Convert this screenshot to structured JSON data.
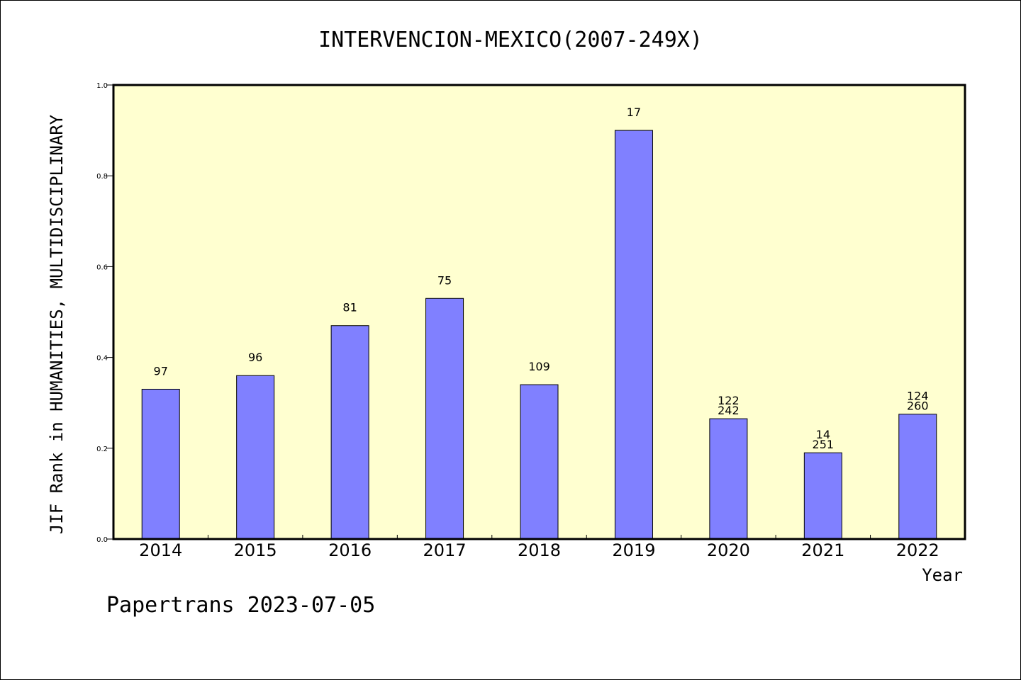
{
  "chart_data": {
    "type": "bar",
    "title": "INTERVENCION-MEXICO(2007-249X)",
    "xlabel": "Year",
    "ylabel": "JIF Rank in HUMANITIES, MULTIDISCIPLINARY",
    "ylim": [
      0,
      1.0
    ],
    "yticks": [
      "0.0",
      "0.2",
      "0.4",
      "0.6",
      "0.8",
      "1.0"
    ],
    "categories": [
      "2014",
      "2015",
      "2016",
      "2017",
      "2018",
      "2019",
      "2020",
      "2021",
      "2022"
    ],
    "values": [
      0.33,
      0.36,
      0.47,
      0.53,
      0.34,
      0.9,
      0.265,
      0.19,
      0.275
    ],
    "rank_labels": [
      "97",
      "96",
      "81",
      "75",
      "109",
      "17",
      "122",
      "14",
      "124"
    ],
    "total_labels": [
      "",
      "",
      "",
      "",
      "",
      "",
      "242",
      "251",
      "260"
    ],
    "grid": false,
    "colors": {
      "bar": "#8080ff",
      "plot_bg": "#ffffd0",
      "bar_edge": "#000000"
    }
  },
  "footer": "Papertrans 2023-07-05"
}
